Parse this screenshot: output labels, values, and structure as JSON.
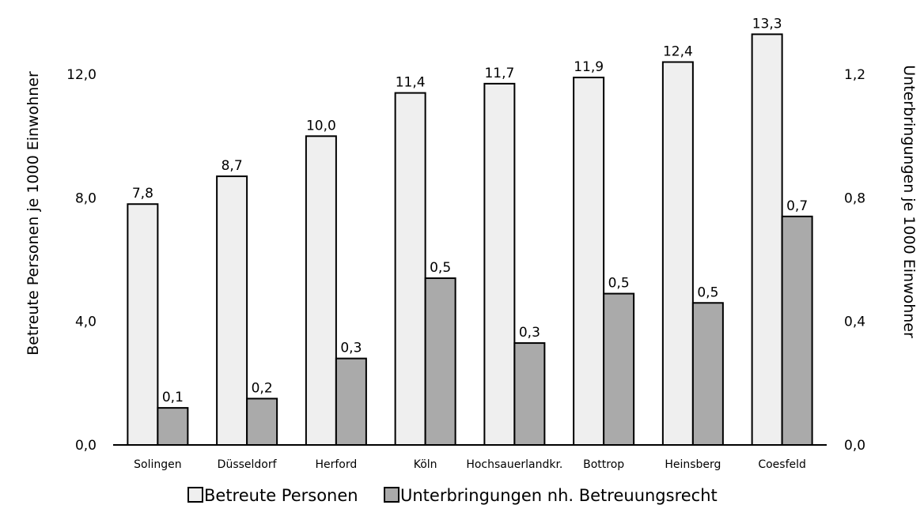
{
  "chart_data": {
    "type": "bar",
    "categories": [
      "Solingen",
      "Düsseldorf",
      "Herford",
      "Köln",
      "Hochsauerlandkr.",
      "Bottrop",
      "Heinsberg",
      "Coesfeld"
    ],
    "series": [
      {
        "name": "Betreute Personen",
        "axis": "left",
        "values": [
          7.8,
          8.7,
          10.0,
          11.4,
          11.7,
          11.9,
          12.4,
          13.3
        ],
        "value_labels": [
          "7,8",
          "8,7",
          "10,0",
          "11,4",
          "11,7",
          "11,9",
          "12,4",
          "13,3"
        ],
        "color": "#efefef"
      },
      {
        "name": "Unterbringungen nh. Betreuungsrecht",
        "axis": "right",
        "values": [
          0.12,
          0.15,
          0.28,
          0.54,
          0.33,
          0.49,
          0.46,
          0.74
        ],
        "value_labels": [
          "0,1",
          "0,2",
          "0,3",
          "0,5",
          "0,3",
          "0,5",
          "0,5",
          "0,7"
        ],
        "color": "#aaaaaa"
      }
    ],
    "ylabel": "Betreute Personen je 1000 Einwohner",
    "y2label": "Unterbringungen je 1000 Einwohner",
    "ylim": [
      0,
      14
    ],
    "y2lim": [
      0,
      1.4
    ],
    "yticks": [
      0,
      4,
      8,
      12
    ],
    "ytick_labels": [
      "0,0",
      "4,0",
      "8,0",
      "12,0"
    ],
    "y2ticks": [
      0,
      0.4,
      0.8,
      1.2
    ],
    "y2tick_labels": [
      "0,0",
      "0,4",
      "0,8",
      "1,2"
    ],
    "grid": false,
    "legend_position": "bottom-center"
  }
}
